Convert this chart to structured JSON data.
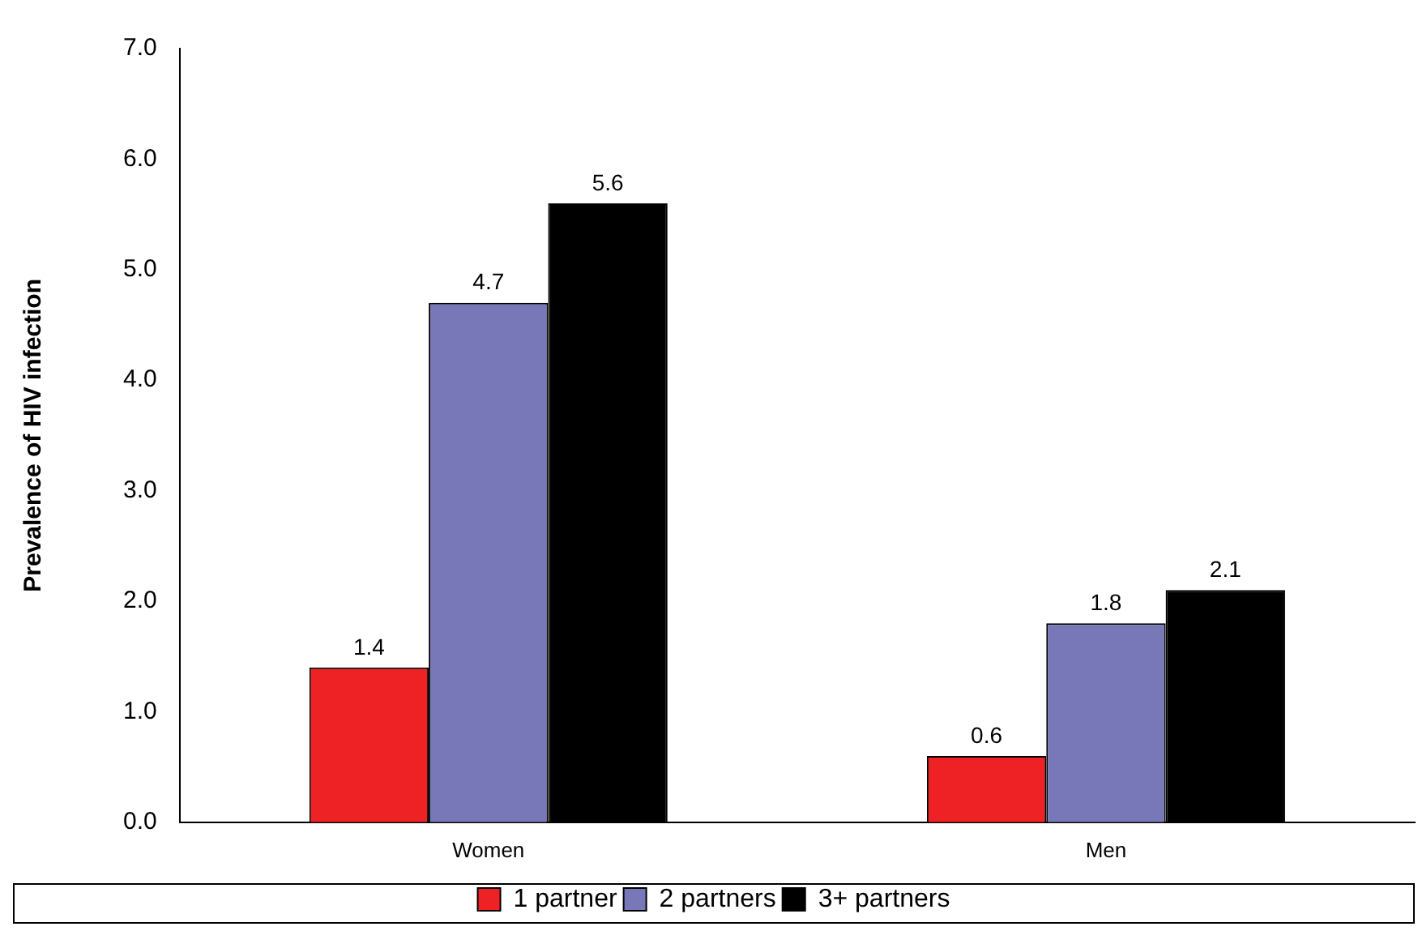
{
  "chart_data": {
    "type": "bar",
    "ylabel": "Prevalence of HIV infection",
    "categories": [
      "Women",
      "Men"
    ],
    "series": [
      {
        "name": "1 partner",
        "color": "#ee2224",
        "values": [
          1.4,
          0.6
        ]
      },
      {
        "name": "2 partners",
        "color": "#7878b8",
        "values": [
          4.7,
          1.8
        ]
      },
      {
        "name": "3+ partners",
        "color": "#000000",
        "values": [
          5.6,
          2.1
        ]
      }
    ],
    "ylim": [
      0,
      7
    ],
    "yticks": [
      {
        "value": 0,
        "label": "0.0"
      },
      {
        "value": 1,
        "label": "1.0"
      },
      {
        "value": 2,
        "label": "2.0"
      },
      {
        "value": 3,
        "label": "3.0"
      },
      {
        "value": 4,
        "label": "4.0"
      },
      {
        "value": 5,
        "label": "5.0"
      },
      {
        "value": 6,
        "label": "6.0"
      },
      {
        "value": 7,
        "label": "7.0"
      }
    ],
    "data_labels": true,
    "legend": "bottom",
    "grid": false
  }
}
